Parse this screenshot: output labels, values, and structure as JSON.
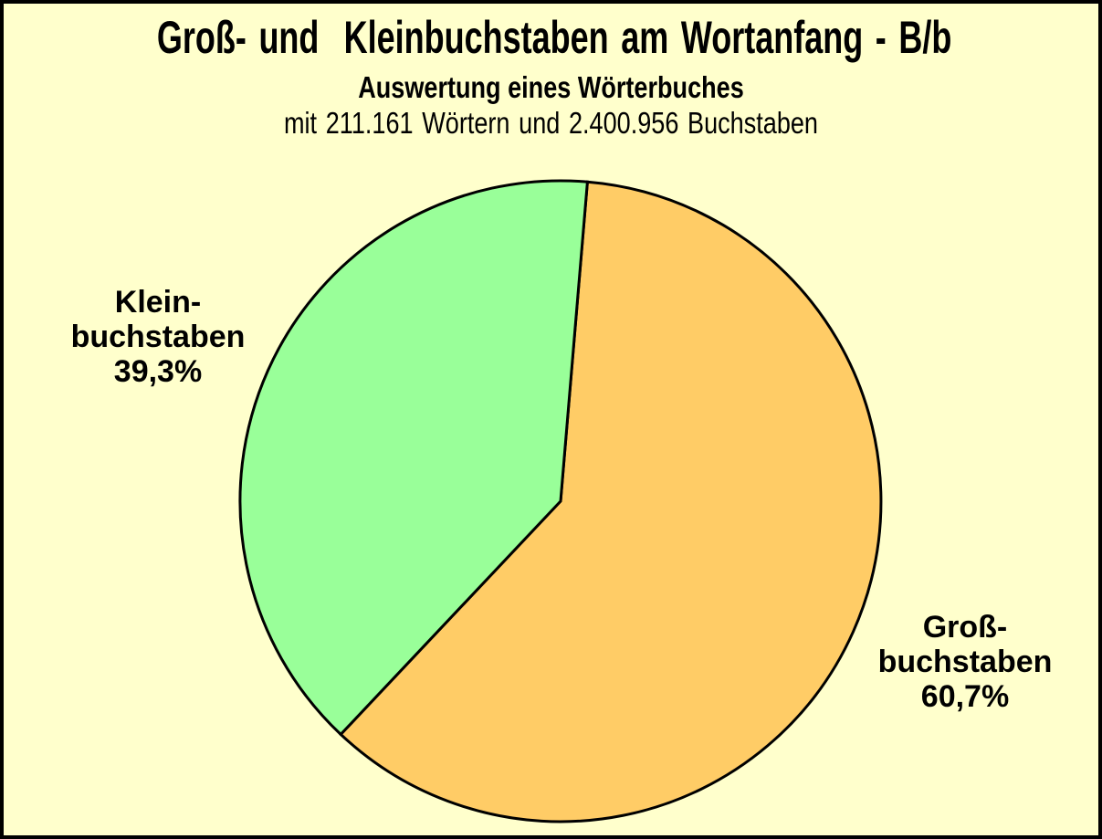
{
  "chart_data": {
    "type": "pie",
    "title": "Groß- und  Kleinbuchstaben am Wortanfang - B/b",
    "subtitle": "Auswertung eines Wörterbuches",
    "subtitle2": "mit 211.161 Wörtern und 2.400.956 Buchstaben",
    "totals": {
      "words": 211161,
      "letters": 2400956
    },
    "background_color": "#FFFFCC",
    "outline_color": "#000000",
    "stroke_width": 3,
    "start_angle_deg": 4.8,
    "legend_position": "labels-beside-slices",
    "slices": [
      {
        "id": "grossbuchstaben",
        "name": "Großbuchstaben",
        "label_lines": [
          "Groß-",
          "buchstaben"
        ],
        "value_percent": 60.7,
        "percent_label": "60,7%",
        "color": "#FFCC66",
        "label_side": "right"
      },
      {
        "id": "kleinbuchstaben",
        "name": "Kleinbuchstaben",
        "label_lines": [
          "Klein-",
          "buchstaben"
        ],
        "value_percent": 39.3,
        "percent_label": "39,3%",
        "color": "#99FF99",
        "label_side": "left"
      }
    ]
  }
}
